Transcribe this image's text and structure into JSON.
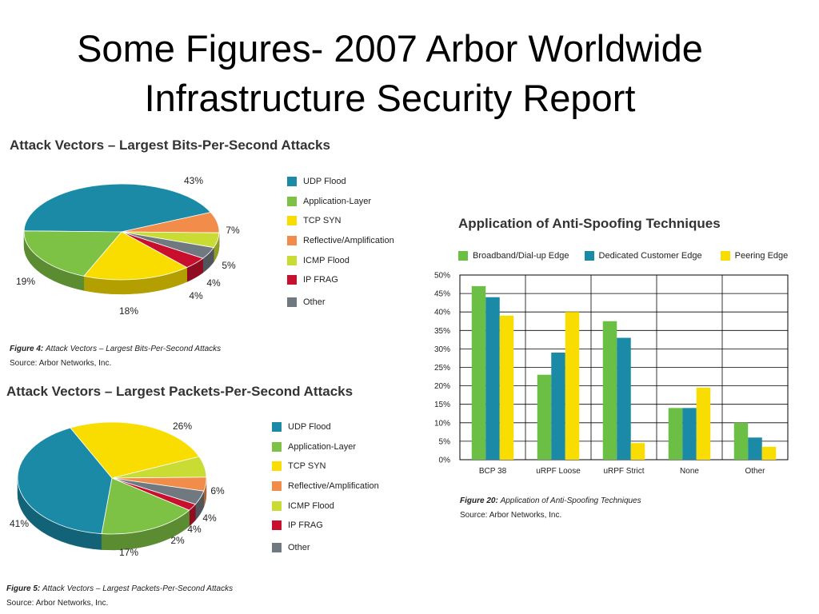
{
  "title_line1": "Some Figures- 2007 Arbor Worldwide",
  "title_line2": "Infrastructure Security Report",
  "colors": {
    "UDP Flood": "#1a8aa6",
    "Application-Layer": "#7ec245",
    "TCP SYN": "#fadd00",
    "Reflective/Amplification": "#f28c4a",
    "ICMP Flood": "#c8dc34",
    "IP FRAG": "#c8102e",
    "Other": "#707880"
  },
  "chart_data": [
    {
      "type": "pie",
      "title": "Attack Vectors – Largest Bits-Per-Second Attacks",
      "categories": [
        "UDP Flood",
        "Reflective/Amplification",
        "ICMP Flood",
        "Other",
        "IP FRAG",
        "TCP SYN",
        "Application-Layer"
      ],
      "labels": [
        "43%",
        "7%",
        "5%",
        "4%",
        "4%",
        "18%",
        "19%"
      ],
      "values": [
        43,
        7,
        5,
        4,
        4,
        18,
        19
      ],
      "legend": [
        "UDP Flood",
        "Application-Layer",
        "TCP SYN",
        "Reflective/Amplification",
        "ICMP Flood",
        "IP FRAG",
        "Other"
      ],
      "caption_fig": "Figure 4:",
      "caption_text": "Attack Vectors – Largest Bits-Per-Second Attacks",
      "source": "Source: Arbor Networks, Inc."
    },
    {
      "type": "pie",
      "title": "Attack Vectors – Largest Packets-Per-Second Attacks",
      "categories": [
        "UDP Flood",
        "TCP SYN",
        "ICMP Flood",
        "Reflective/Amplification",
        "Other",
        "IP FRAG",
        "Application-Layer"
      ],
      "labels": [
        "41%",
        "26%",
        "6%",
        "4%",
        "4%",
        "2%",
        "17%"
      ],
      "values": [
        41,
        26,
        6,
        4,
        4,
        2,
        17
      ],
      "legend": [
        "UDP Flood",
        "Application-Layer",
        "TCP SYN",
        "Reflective/Amplification",
        "ICMP Flood",
        "IP FRAG",
        "Other"
      ],
      "caption_fig": "Figure 5:",
      "caption_text": "Attack Vectors – Largest Packets-Per-Second Attacks",
      "source": "Source: Arbor Networks, Inc."
    },
    {
      "type": "bar",
      "title": "Application of Anti-Spoofing Techniques",
      "categories": [
        "BCP 38",
        "uRPF Loose",
        "uRPF Strict",
        "None",
        "Other"
      ],
      "series": [
        {
          "name": "Broadband/Dial-up Edge",
          "color": "#6cbf45",
          "values": [
            47,
            23,
            37.5,
            14,
            10
          ]
        },
        {
          "name": "Dedicated Customer Edge",
          "color": "#1a8aa6",
          "values": [
            44,
            29,
            33,
            14,
            6
          ]
        },
        {
          "name": "Peering Edge",
          "color": "#fadd00",
          "values": [
            39,
            40,
            4.5,
            19.5,
            3.5
          ]
        }
      ],
      "yticks": [
        "0%",
        "5%",
        "10%",
        "15%",
        "20%",
        "25%",
        "30%",
        "35%",
        "40%",
        "45%",
        "50%"
      ],
      "ylim": [
        0,
        50
      ],
      "grid": true,
      "caption_fig": "Figure 20:",
      "caption_text": "Application of Anti-Spoofing Techniques",
      "source": "Source: Arbor Networks, Inc."
    }
  ]
}
